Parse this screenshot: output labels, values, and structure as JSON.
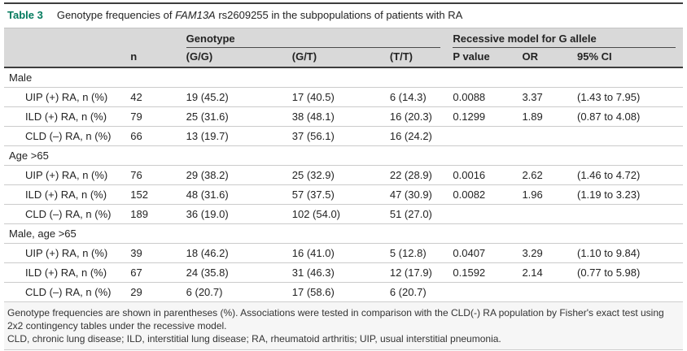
{
  "colors": {
    "accent": "#027a5d",
    "header_bg": "#d9d9d9"
  },
  "caption": {
    "label": "Table 3",
    "before_gene": "Genotype frequencies of ",
    "gene": "FAM13A",
    "after_gene": " rs2609255 in the subpopulations of patients with RA"
  },
  "header": {
    "n": "n",
    "genotype_group": "Genotype",
    "gg": "(G/G)",
    "gt": "(G/T)",
    "tt": "(T/T)",
    "recessive_group": "Recessive model for G allele",
    "p": "P value",
    "or": "OR",
    "ci": "95% CI"
  },
  "sections": [
    {
      "label": "Male",
      "rows": [
        {
          "label": "UIP (+) RA, n (%)",
          "n": "42",
          "gg": "19 (45.2)",
          "gt": "17 (40.5)",
          "tt": "6 (14.3)",
          "p": "0.0088",
          "or": "3.37",
          "ci": "(1.43 to 7.95)"
        },
        {
          "label": "ILD (+) RA, n (%)",
          "n": "79",
          "gg": "25 (31.6)",
          "gt": "38 (48.1)",
          "tt": "16 (20.3)",
          "p": "0.1299",
          "or": "1.89",
          "ci": "(0.87 to 4.08)"
        },
        {
          "label": "CLD (–) RA, n (%)",
          "n": "66",
          "gg": "13 (19.7)",
          "gt": "37 (56.1)",
          "tt": "16 (24.2)",
          "p": "",
          "or": "",
          "ci": ""
        }
      ]
    },
    {
      "label": "Age >65",
      "rows": [
        {
          "label": "UIP (+) RA, n (%)",
          "n": "76",
          "gg": "29 (38.2)",
          "gt": "25 (32.9)",
          "tt": "22 (28.9)",
          "p": "0.0016",
          "or": "2.62",
          "ci": "(1.46 to 4.72)"
        },
        {
          "label": "ILD (+) RA, n (%)",
          "n": "152",
          "gg": "48 (31.6)",
          "gt": "57 (37.5)",
          "tt": "47 (30.9)",
          "p": "0.0082",
          "or": "1.96",
          "ci": "(1.19 to 3.23)"
        },
        {
          "label": "CLD (–) RA, n (%)",
          "n": "189",
          "gg": "36 (19.0)",
          "gt": "102 (54.0)",
          "tt": "51 (27.0)",
          "p": "",
          "or": "",
          "ci": ""
        }
      ]
    },
    {
      "label": "Male, age >65",
      "rows": [
        {
          "label": "UIP (+) RA, n (%)",
          "n": "39",
          "gg": "18 (46.2)",
          "gt": "16 (41.0)",
          "tt": "5 (12.8)",
          "p": "0.0407",
          "or": "3.29",
          "ci": "(1.10 to 9.84)"
        },
        {
          "label": "ILD (+) RA, n (%)",
          "n": "67",
          "gg": "24 (35.8)",
          "gt": "31 (46.3)",
          "tt": "12 (17.9)",
          "p": "0.1592",
          "or": "2.14",
          "ci": "(0.77 to 5.98)"
        },
        {
          "label": "CLD (–) RA, n (%)",
          "n": "29",
          "gg": "6 (20.7)",
          "gt": "17 (58.6)",
          "tt": "6 (20.7)",
          "p": "",
          "or": "",
          "ci": ""
        }
      ]
    }
  ],
  "footnotes": [
    "Genotype frequencies are shown in parentheses (%). Associations were tested in comparison with the CLD(-) RA population by Fisher's exact test using 2x2 contingency tables under the recessive model.",
    "CLD, chronic lung disease; ILD, interstitial lung disease; RA, rheumatoid arthritis; UIP, usual interstitial pneumonia."
  ]
}
